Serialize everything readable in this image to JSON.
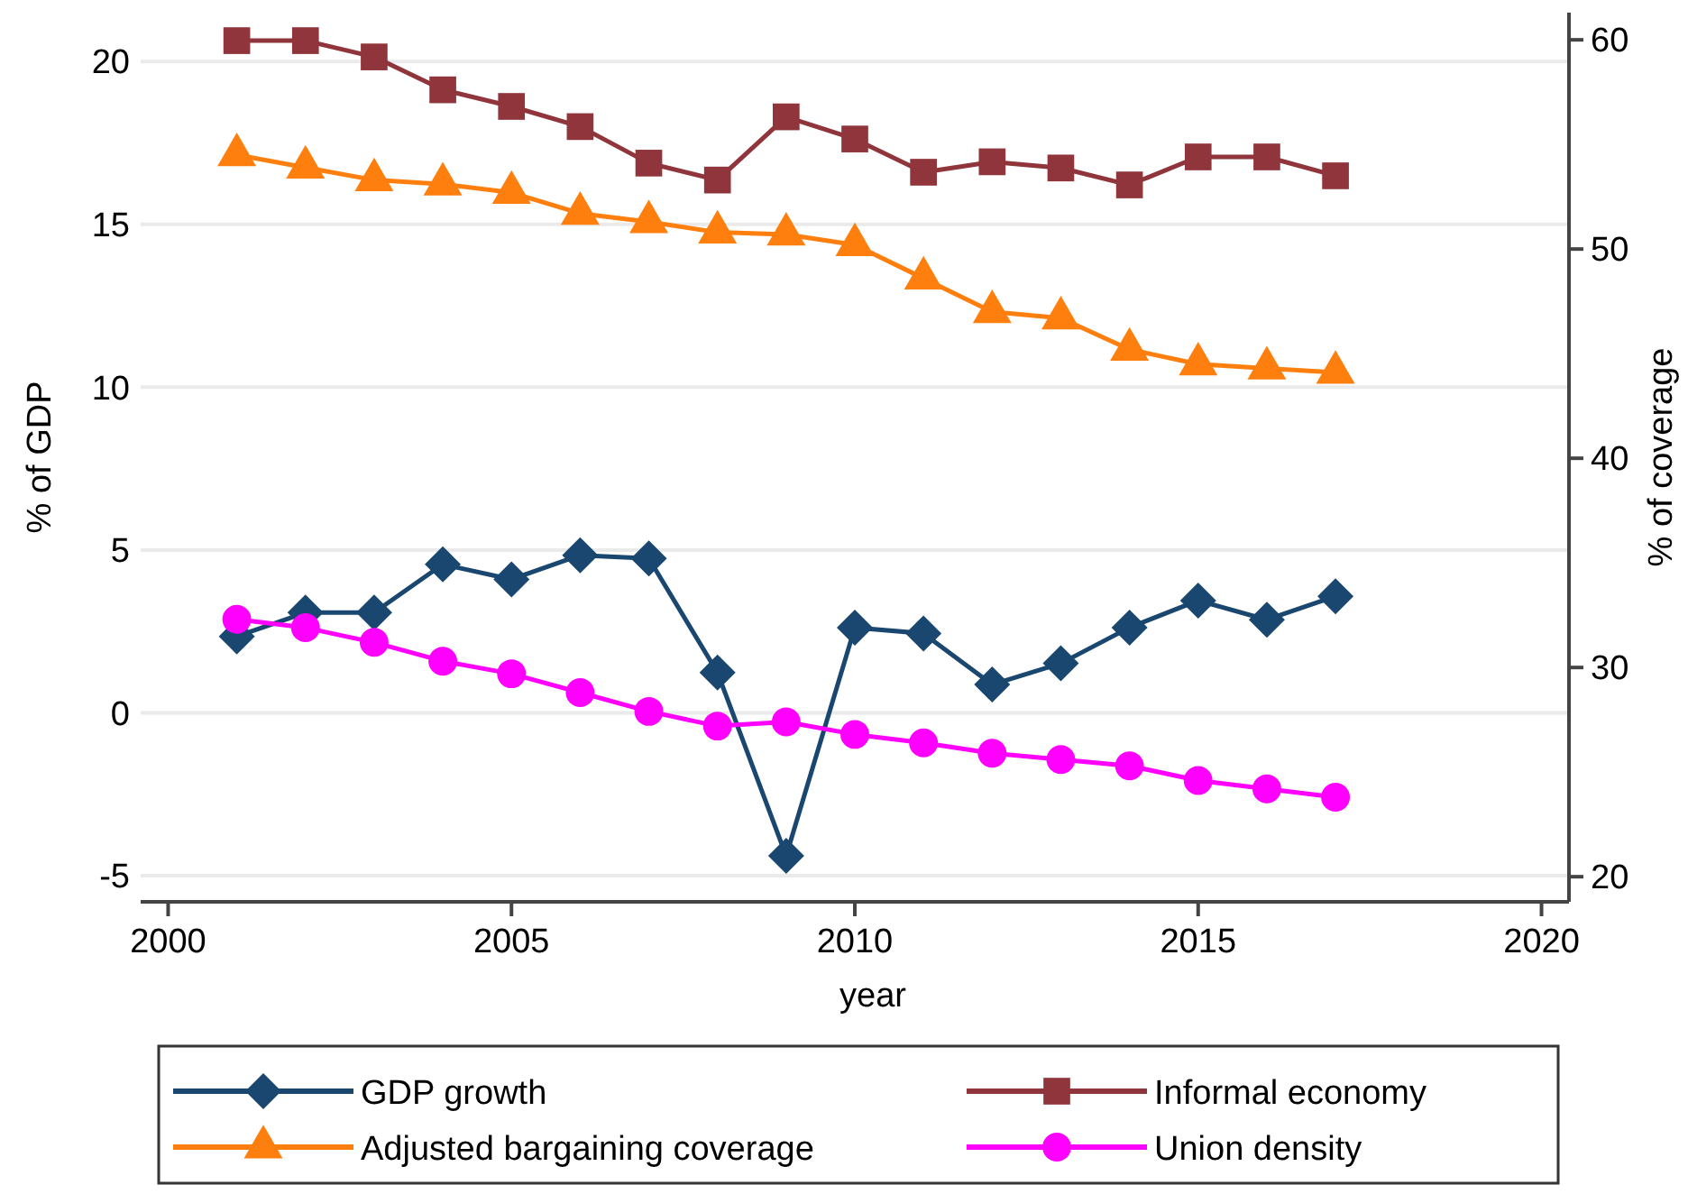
{
  "chart_data": {
    "type": "line",
    "xlabel": "year",
    "ylabel": "% of GDP",
    "y2label": "% of coverage",
    "x": [
      2001,
      2002,
      2003,
      2004,
      2005,
      2006,
      2007,
      2008,
      2009,
      2010,
      2011,
      2012,
      2013,
      2014,
      2015,
      2016,
      2017
    ],
    "xlim": [
      1999.6,
      2020.4
    ],
    "xticks": [
      2000,
      2005,
      2010,
      2015,
      2020
    ],
    "ylim": [
      -5.8,
      21.5
    ],
    "yticks": [
      -5,
      0,
      5,
      10,
      15,
      20
    ],
    "y2lim": [
      18.8,
      61.3
    ],
    "y2ticks": [
      20,
      30,
      40,
      50,
      60
    ],
    "grid": "y",
    "legend": "bottom",
    "line_style": "solid",
    "series": [
      {
        "name": "GDP growth",
        "color": "#1a476f",
        "marker": "diamond",
        "values": [
          2.35,
          3.08,
          3.08,
          4.56,
          4.1,
          4.84,
          4.74,
          1.24,
          -4.39,
          2.62,
          2.44,
          0.87,
          1.52,
          2.62,
          3.45,
          2.86,
          3.58
        ]
      },
      {
        "name": "Informal economy",
        "color": "#90353b",
        "marker": "square",
        "values": [
          20.64,
          20.64,
          20.14,
          19.13,
          18.62,
          18.0,
          16.88,
          16.36,
          18.3,
          17.62,
          16.6,
          16.92,
          16.73,
          16.21,
          17.07,
          17.07,
          16.49
        ]
      },
      {
        "name": "Adjusted bargaining coverage",
        "color": "#ff7f0e",
        "marker": "triangle",
        "axis": "y2",
        "values": [
          54.5,
          53.9,
          53.3,
          53.1,
          52.7,
          51.7,
          51.3,
          50.8,
          50.7,
          50.2,
          48.6,
          47.0,
          46.7,
          45.2,
          44.5,
          44.3,
          44.1
        ]
      },
      {
        "name": "Union density",
        "color": "#ff00ff",
        "marker": "circle",
        "axis": "y2",
        "values": [
          32.3,
          31.9,
          31.2,
          30.3,
          29.7,
          28.8,
          27.9,
          27.2,
          27.4,
          26.8,
          26.4,
          25.9,
          25.6,
          25.3,
          24.6,
          24.2,
          23.8
        ]
      }
    ]
  }
}
